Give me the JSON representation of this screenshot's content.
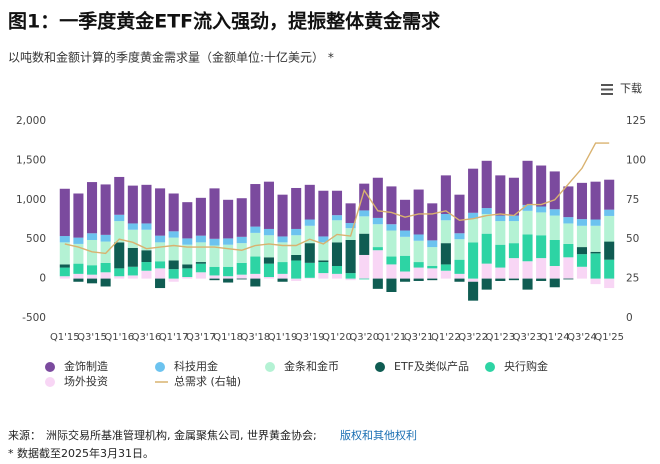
{
  "chart_data": {
    "type": "bar",
    "stacked": true,
    "title": "图1：一季度黄金ETF流入强劲，提振整体黄金需求",
    "subtitle": "以吨数和金额计算的季度黄金需求量（金额单位:十亿美元） *",
    "download_label": "下载",
    "categories": [
      "Q1'15",
      null,
      "Q3'15",
      null,
      "Q1'16",
      null,
      "Q3'16",
      null,
      "Q1'17",
      null,
      "Q3'17",
      null,
      "Q1'18",
      null,
      "Q3'18",
      null,
      "Q1'19",
      null,
      "Q3'19",
      null,
      "Q1'20",
      null,
      "Q3'20",
      null,
      "Q1'21",
      null,
      "Q3'21",
      null,
      "Q1'22",
      null,
      "Q3'22",
      null,
      "Q1'23",
      null,
      "Q3'23",
      null,
      "Q1'24",
      null,
      "Q3'24",
      null,
      "Q1'25"
    ],
    "series": [
      {
        "name": "金饰制造",
        "color": "#7b4a9e",
        "values": [
          600,
          560,
          650,
          640,
          480,
          480,
          490,
          600,
          480,
          460,
          480,
          640,
          490,
          490,
          540,
          600,
          530,
          520,
          440,
          580,
          310,
          250,
          340,
          510,
          480,
          390,
          570,
          470,
          490,
          490,
          560,
          600,
          510,
          480,
          560,
          520,
          480,
          390,
          460,
          480,
          380
        ]
      },
      {
        "name": "科技用金",
        "color": "#6cc3ef",
        "values": [
          80,
          80,
          85,
          85,
          80,
          80,
          80,
          85,
          80,
          80,
          85,
          85,
          80,
          80,
          80,
          80,
          75,
          80,
          80,
          75,
          65,
          65,
          75,
          80,
          80,
          80,
          80,
          85,
          80,
          75,
          75,
          75,
          70,
          70,
          75,
          75,
          80,
          80,
          85,
          80,
          80
        ]
      },
      {
        "name": "金条和金币",
        "color": "#b4f2d4",
        "values": [
          280,
          250,
          320,
          270,
          270,
          230,
          260,
          240,
          290,
          250,
          250,
          270,
          280,
          250,
          300,
          280,
          250,
          250,
          220,
          230,
          280,
          150,
          220,
          290,
          330,
          240,
          270,
          240,
          290,
          260,
          300,
          250,
          300,
          280,
          300,
          290,
          310,
          260,
          270,
          330,
          325
        ]
      },
      {
        "name": "ETF及类似产品",
        "color": "#0f5c52",
        "values": [
          40,
          -40,
          -60,
          -100,
          330,
          240,
          150,
          -120,
          110,
          50,
          20,
          -20,
          -50,
          -10,
          -100,
          80,
          -40,
          70,
          250,
          20,
          300,
          420,
          270,
          -130,
          -170,
          -40,
          -30,
          -20,
          270,
          -40,
          -240,
          -140,
          -30,
          -20,
          -140,
          -30,
          -110,
          -10,
          90,
          20,
          230
        ]
      },
      {
        "name": "央行购金",
        "color": "#2dd4a4",
        "values": [
          110,
          130,
          120,
          120,
          100,
          110,
          110,
          90,
          120,
          110,
          110,
          110,
          120,
          150,
          220,
          170,
          150,
          230,
          190,
          140,
          100,
          70,
          -10,
          40,
          100,
          200,
          70,
          30,
          80,
          180,
          460,
          380,
          290,
          190,
          340,
          290,
          330,
          170,
          160,
          320,
          240
        ]
      },
      {
        "name": "场外投资",
        "color": "#f8d6f5",
        "values": [
          30,
          60,
          50,
          80,
          30,
          40,
          100,
          130,
          -40,
          20,
          80,
          40,
          30,
          50,
          60,
          20,
          60,
          -30,
          10,
          70,
          60,
          -20,
          300,
          360,
          180,
          90,
          140,
          130,
          100,
          60,
          -40,
          190,
          140,
          260,
          220,
          260,
          160,
          270,
          150,
          -70,
          -120
        ]
      },
      {
        "name": "总需求 (右轴)",
        "color": "#d9b26f",
        "type": "line",
        "axis": "y2",
        "values": [
          47,
          45,
          42,
          41,
          50,
          48,
          44,
          45,
          46,
          45,
          45,
          45,
          44,
          43,
          46,
          47,
          46,
          46,
          50,
          47,
          53,
          52,
          81,
          68,
          67,
          64,
          66,
          66,
          68,
          62,
          63,
          65,
          66,
          65,
          72,
          72,
          75,
          85,
          95,
          111,
          111
        ]
      }
    ],
    "ylim": [
      -500,
      2000
    ],
    "yticks": [
      -500,
      0,
      500,
      {
        "value": 1000,
        "label": "1,000"
      },
      {
        "value": 1500,
        "label": "1,500"
      },
      {
        "value": 2000,
        "label": "2,000"
      }
    ],
    "y2lim": [
      0,
      125
    ],
    "y2ticks": [
      0,
      25,
      50,
      75,
      100,
      125
    ],
    "grid": false,
    "source": {
      "label": "来源：",
      "text": "洲际交易所基准管理机构, 金属聚焦公司, 世界黄金协会;",
      "link": "版权和其他权利"
    },
    "footnote": "* 数据截至2025年3月31日。"
  }
}
